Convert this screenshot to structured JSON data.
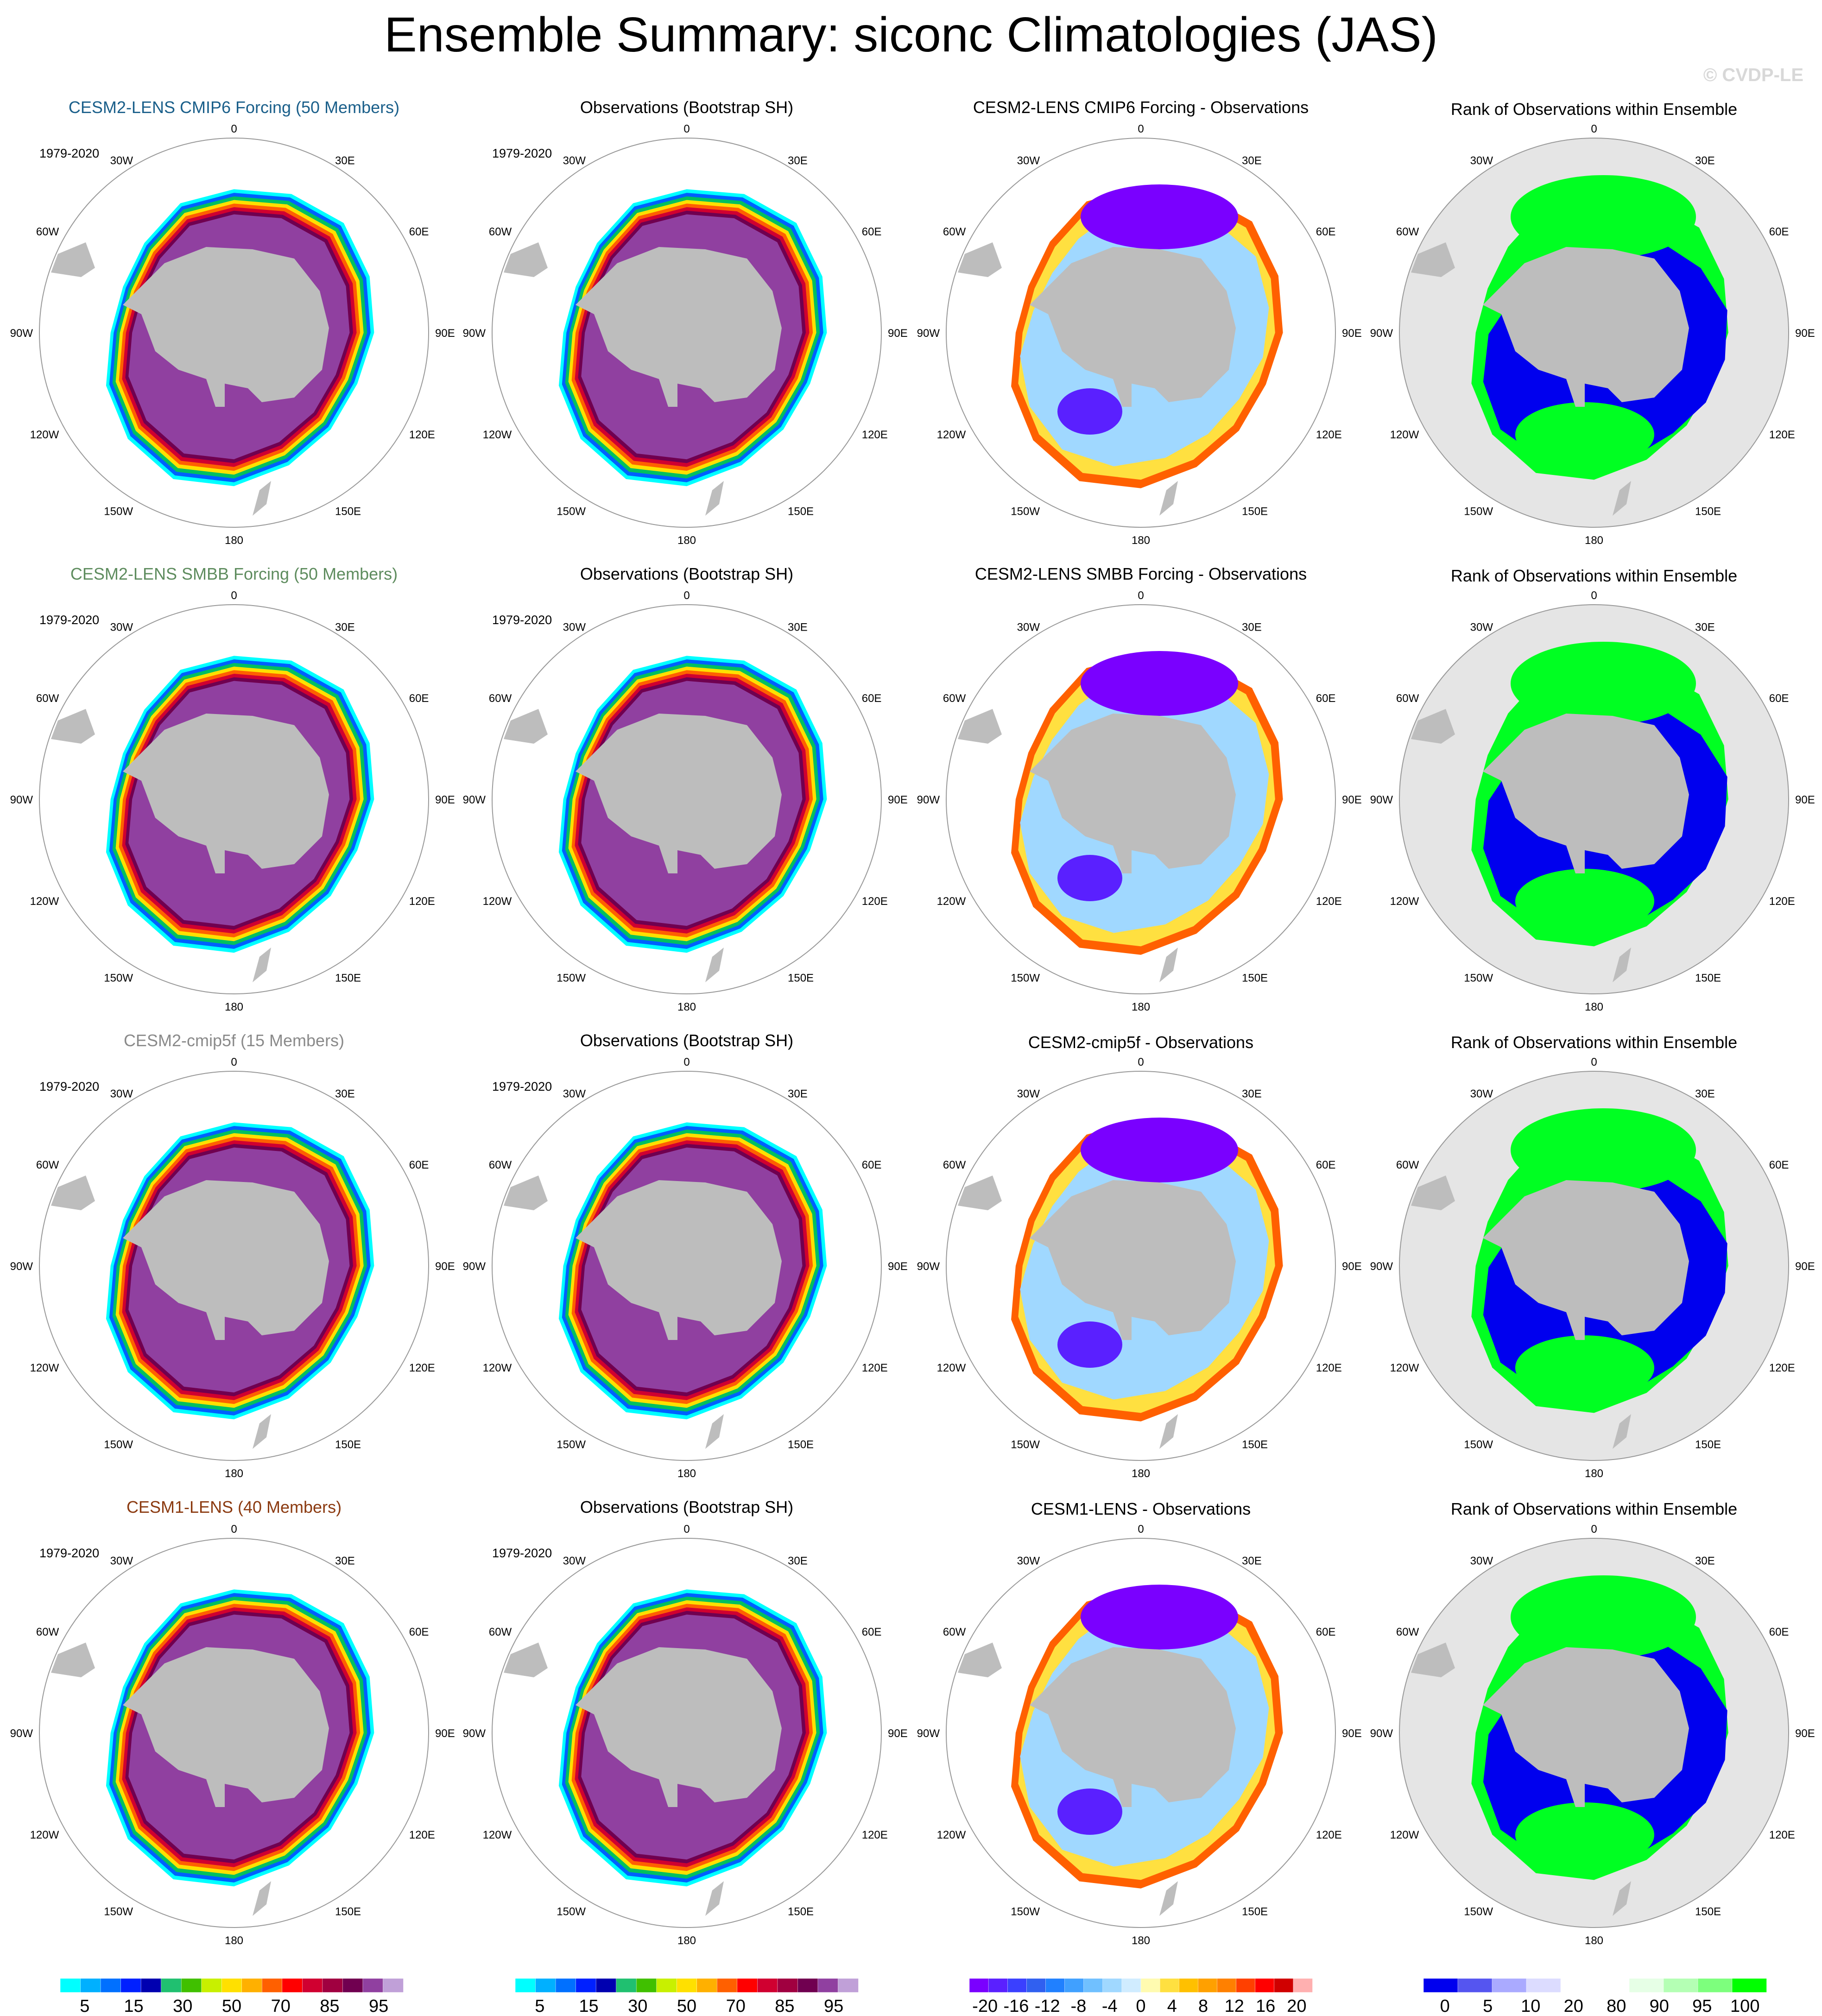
{
  "title": "Ensemble Summary: siconc Climatologies (JAS)",
  "copyright": "© CVDP-LE",
  "period": "1979-2020",
  "lon_labels": {
    "top": "0",
    "r30": "30E",
    "r60": "60E",
    "r90": "90E",
    "r120": "120E",
    "r150": "150E",
    "bottom": "180",
    "l30": "30W",
    "l60": "60W",
    "l90": "90W",
    "l120": "120W",
    "l150": "150W"
  },
  "colors": {
    "ocean_rank": "#e5e5e5",
    "land": "#bdbdbd",
    "rank_low": "#0000ee",
    "rank_high": "#00ff22"
  },
  "rows": [
    {
      "model": "CESM2-LENS CMIP6 Forcing (50 Members)",
      "model_color": "#1a5f8a",
      "obs": "Observations (Bootstrap SH)",
      "diff": "CESM2-LENS CMIP6 Forcing - Observations",
      "rank": "Rank of Observations within Ensemble"
    },
    {
      "model": "CESM2-LENS SMBB Forcing (50 Members)",
      "model_color": "#5e8c5e",
      "obs": "Observations (Bootstrap SH)",
      "diff": "CESM2-LENS SMBB Forcing - Observations",
      "rank": "Rank of Observations within Ensemble"
    },
    {
      "model": "CESM2-cmip5f (15 Members)",
      "model_color": "#8a8a8a",
      "obs": "Observations (Bootstrap SH)",
      "diff": "CESM2-cmip5f - Observations",
      "rank": "Rank of Observations within Ensemble"
    },
    {
      "model": "CESM1-LENS (40 Members)",
      "model_color": "#8b3a10",
      "obs": "Observations (Bootstrap SH)",
      "diff": "CESM1-LENS - Observations",
      "rank": "Rank of Observations within Ensemble"
    }
  ],
  "colorbars": [
    {
      "colors": [
        "#00ffff",
        "#00b0ff",
        "#0070ff",
        "#0020ff",
        "#0000b0",
        "#20c070",
        "#40c000",
        "#c8f000",
        "#ffe000",
        "#ffb000",
        "#ff6000",
        "#ff0000",
        "#d00030",
        "#a00040",
        "#700050",
        "#9040a0",
        "#c0a0d8"
      ],
      "labels": [
        "5",
        "15",
        "30",
        "50",
        "70",
        "85",
        "95"
      ],
      "unit": "%"
    },
    {
      "colors": [
        "#00ffff",
        "#00b0ff",
        "#0070ff",
        "#0020ff",
        "#0000b0",
        "#20c070",
        "#40c000",
        "#c8f000",
        "#ffe000",
        "#ffb000",
        "#ff6000",
        "#ff0000",
        "#d00030",
        "#a00040",
        "#700050",
        "#9040a0",
        "#c0a0d8"
      ],
      "labels": [
        "5",
        "15",
        "30",
        "50",
        "70",
        "85",
        "95"
      ],
      "unit": "%"
    },
    {
      "colors": [
        "#7a00ff",
        "#5a20ff",
        "#3a40ff",
        "#3060f0",
        "#2080ff",
        "#40a0ff",
        "#70c0ff",
        "#a0d8ff",
        "#d0ecff",
        "#fffbb0",
        "#ffe040",
        "#ffc000",
        "#ffa000",
        "#ff8000",
        "#ff4000",
        "#ff0000",
        "#d00000",
        "#ffb0b0"
      ],
      "labels": [
        "-20",
        "-16",
        "-12",
        "-8",
        "-4",
        "0",
        "4",
        "8",
        "12",
        "16",
        "20"
      ],
      "unit": "%"
    },
    {
      "colors": [
        "#0000ee",
        "#5555f0",
        "#aaaaff",
        "#dcdcff",
        "#ffffff",
        "#ffffff",
        "#e6ffe6",
        "#b4ffb4",
        "#7dff7d",
        "#00ff00"
      ],
      "labels": [
        "0",
        "5",
        "10",
        "20",
        "80",
        "90",
        "95",
        "100"
      ],
      "unit": "%"
    }
  ]
}
